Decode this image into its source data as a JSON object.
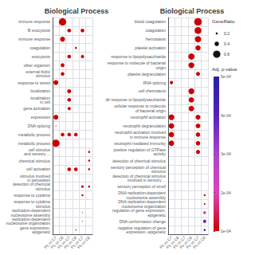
{
  "chart_data": {
    "type": "scatter",
    "grid": true,
    "categories": [
      "Ps vs C7",
      "Ps vs C8",
      "Ps vs C7",
      "Ps vs C8",
      "Ps vs C7",
      "Ps vs C8"
    ],
    "panels": [
      {
        "title": "Biological Process",
        "rows": [
          "immune response",
          "B exocytosis",
          "immune response",
          "coagulation",
          "exocytosis",
          "other organism",
          "external biotic\nstimulus",
          "response to stress",
          "localization",
          "localization\nin cell",
          "gene activation",
          "expression",
          "DNA splicing",
          "metabolic process",
          "metabolic process",
          "cell stimulus\nand sensory ...",
          "chemical stimulus",
          "cell activation",
          "stimulus involved\nin perception",
          "detection of chemical\nstimulus",
          "response to cytokine",
          "response to cytokine\nstimulus",
          "replication-dependent\nnucleosome assembly",
          "replication-dependent\nnucleosome organization",
          "gene expression,\nepigenetic"
        ],
        "points": [
          {
            "row": 0,
            "col": 1,
            "size": 220,
            "color": "#cc0000"
          },
          {
            "row": 1,
            "col": 2,
            "size": 55,
            "color": "#cc0000"
          },
          {
            "row": 1,
            "col": 4,
            "size": 55,
            "color": "#cc0000"
          },
          {
            "row": 2,
            "col": 1,
            "size": 100,
            "color": "#cc0000"
          },
          {
            "row": 3,
            "col": 3,
            "size": 18,
            "color": "#cc0000"
          },
          {
            "row": 4,
            "col": 2,
            "size": 55,
            "color": "#cc0000"
          },
          {
            "row": 4,
            "col": 4,
            "size": 45,
            "color": "#cc0000"
          },
          {
            "row": 5,
            "col": 1,
            "size": 65,
            "color": "#cc0000"
          },
          {
            "row": 6,
            "col": 1,
            "size": 55,
            "color": "#cc0000"
          },
          {
            "row": 7,
            "col": 0,
            "size": 100,
            "color": "#cc0000"
          },
          {
            "row": 8,
            "col": 2,
            "size": 65,
            "color": "#cc0000"
          },
          {
            "row": 9,
            "col": 2,
            "size": 55,
            "color": "#cc0000"
          },
          {
            "row": 10,
            "col": 2,
            "size": 40,
            "color": "#cc0000"
          },
          {
            "row": 11,
            "col": 0,
            "size": 100,
            "color": "#cc0000"
          },
          {
            "row": 12,
            "col": 0,
            "size": 4,
            "color": "#cc0000"
          },
          {
            "row": 13,
            "col": 1,
            "size": 55,
            "color": "#cc0000"
          },
          {
            "row": 13,
            "col": 2,
            "size": 55,
            "color": "#cc0000"
          },
          {
            "row": 13,
            "col": 3,
            "size": 55,
            "color": "#cc0000"
          },
          {
            "row": 14,
            "col": 0,
            "size": 220,
            "color": "#cc0000"
          },
          {
            "row": 15,
            "col": 5,
            "size": 18,
            "color": "#cc0000"
          },
          {
            "row": 16,
            "col": 5,
            "size": 18,
            "color": "#cc0000"
          },
          {
            "row": 17,
            "col": 2,
            "size": 55,
            "color": "#cc0000"
          },
          {
            "row": 17,
            "col": 3,
            "size": 55,
            "color": "#cc0000"
          },
          {
            "row": 17,
            "col": 5,
            "size": 18,
            "color": "#cc0000"
          },
          {
            "row": 19,
            "col": 4,
            "size": 25,
            "color": "#cc0000"
          },
          {
            "row": 19,
            "col": 5,
            "size": 18,
            "color": "#cc0000"
          },
          {
            "row": 20,
            "col": 4,
            "size": 18,
            "color": "#cc0000"
          },
          {
            "row": 22,
            "col": 4,
            "size": 6,
            "color": "#888888"
          },
          {
            "row": 23,
            "col": 4,
            "size": 5,
            "color": "#888888"
          },
          {
            "row": 24,
            "col": 3,
            "size": 6,
            "color": "#444444"
          }
        ]
      },
      {
        "title": "Biological Process",
        "rows": [
          "blood coagulation",
          "coagulation",
          "hemostasis",
          "platelet activation",
          "response to lipopolysaccharide",
          "response to molecule of bacterial\norigin",
          "platelet degranulation",
          "RNA splicing",
          "cell chemotaxis",
          "dir response to lipopolysaccharide",
          "cellular response to molecule\nof bacterial origin",
          "neutrophil activation",
          "neutrophil degranulation",
          "neutrophil activation involved\nin immune response",
          "neutrophil mediated immunity",
          "positive regulation of GTPase\nactivity",
          "detection of chemical stimulus",
          "sensory perception of chemical\nstimulus",
          "detection of chemical stimulus\ninvolved in sensory ...",
          "sensory perception of smell",
          "DNA replication-dependent\nnucleosome assembly",
          "DNA replication-dependent\nnucleosome organization",
          "regulation of gene expression,\nepigenetic",
          "DNA conformation change",
          "negative regulation of gene\nexpression, epigenetic"
        ],
        "points": [
          {
            "row": 0,
            "col": 4,
            "size": 240,
            "color": "#cc0000"
          },
          {
            "row": 1,
            "col": 4,
            "size": 190,
            "color": "#cc0000"
          },
          {
            "row": 2,
            "col": 4,
            "size": 160,
            "color": "#cc0000"
          },
          {
            "row": 3,
            "col": 4,
            "size": 110,
            "color": "#cc0000"
          },
          {
            "row": 4,
            "col": 3,
            "size": 160,
            "color": "#cc0000"
          },
          {
            "row": 5,
            "col": 3,
            "size": 140,
            "color": "#cc0000"
          },
          {
            "row": 6,
            "col": 4,
            "size": 65,
            "color": "#cc0000"
          },
          {
            "row": 7,
            "col": 0,
            "size": 45,
            "color": "#cc0000"
          },
          {
            "row": 8,
            "col": 3,
            "size": 140,
            "color": "#cc0000"
          },
          {
            "row": 9,
            "col": 3,
            "size": 120,
            "color": "#cc0000"
          },
          {
            "row": 10,
            "col": 3,
            "size": 120,
            "color": "#cc0000"
          },
          {
            "row": 11,
            "col": 0,
            "size": 140,
            "color": "#cc0000"
          },
          {
            "row": 11,
            "col": 4,
            "size": 100,
            "color": "#cc0000"
          },
          {
            "row": 12,
            "col": 0,
            "size": 120,
            "color": "#cc0000"
          },
          {
            "row": 12,
            "col": 4,
            "size": 90,
            "color": "#cc0000"
          },
          {
            "row": 13,
            "col": 0,
            "size": 120,
            "color": "#cc0000"
          },
          {
            "row": 13,
            "col": 4,
            "size": 80,
            "color": "#cc0000"
          },
          {
            "row": 14,
            "col": 0,
            "size": 120,
            "color": "#cc0000"
          },
          {
            "row": 14,
            "col": 4,
            "size": 80,
            "color": "#cc0000"
          },
          {
            "row": 15,
            "col": 4,
            "size": 70,
            "color": "#cc0000"
          },
          {
            "row": 20,
            "col": 5,
            "size": 16,
            "color": "#cc0000"
          },
          {
            "row": 21,
            "col": 5,
            "size": 12,
            "color": "#cc0000"
          },
          {
            "row": 22,
            "col": 5,
            "size": 35,
            "color": "#cc44bb"
          },
          {
            "row": 23,
            "col": 5,
            "size": 45,
            "color": "#6622bb"
          },
          {
            "row": 24,
            "col": 5,
            "size": 18,
            "color": "#3322aa"
          }
        ]
      }
    ],
    "size_legend": {
      "title": "GeneRatio",
      "entries": [
        {
          "value": 0.2,
          "size": 18
        },
        {
          "value": 0.4,
          "size": 80
        },
        {
          "value": 0.6,
          "size": 220
        }
      ],
      "color": "#111111"
    },
    "colorbar": {
      "title": "Adj. p-value",
      "range": [
        0.0001,
        0.0005
      ],
      "ticks": [
        {
          "value": 0.0001,
          "label": "1e-04"
        },
        {
          "value": 0.0002,
          "label": "2e-04"
        },
        {
          "value": 0.0003,
          "label": "3e-04"
        },
        {
          "value": 0.0004,
          "label": "4e-04"
        },
        {
          "value": 0.0005,
          "label": "5e-04"
        }
      ],
      "colors": [
        "#cc0000",
        "#dd44bb",
        "#aa44cc",
        "#5522bb",
        "#2222aa"
      ]
    }
  }
}
